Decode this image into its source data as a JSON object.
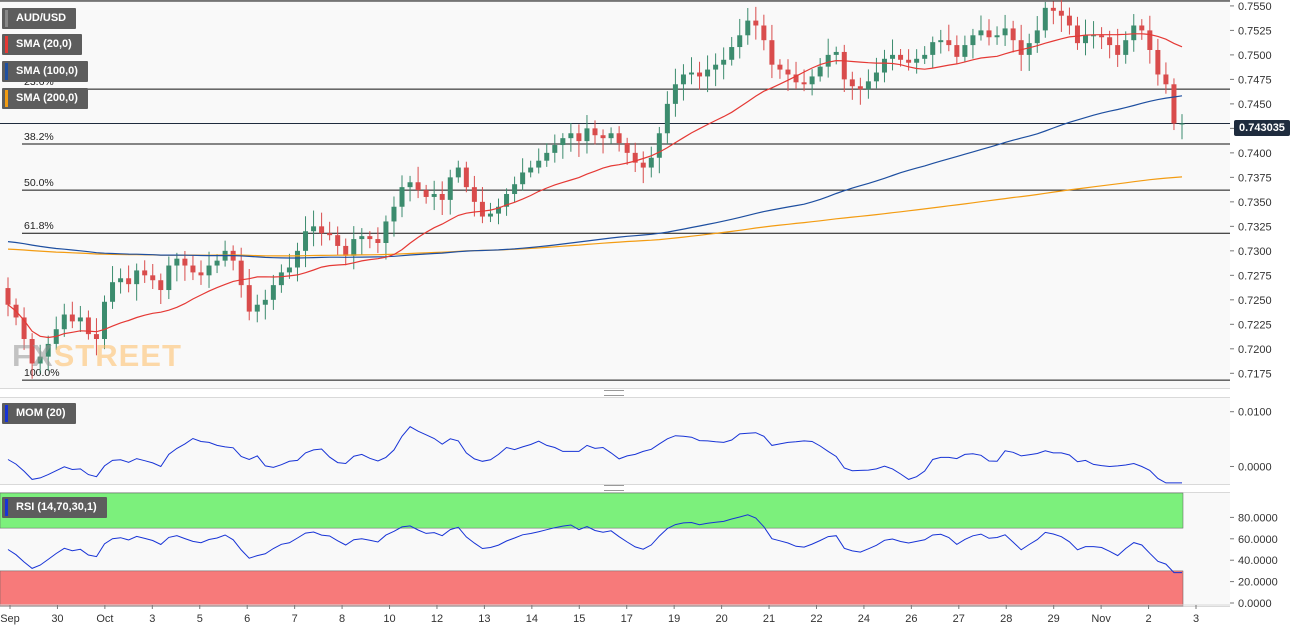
{
  "instrument": "AUD/USD",
  "current_price": "0.743035",
  "watermark": {
    "prefix": "FX",
    "suffix": "STREET"
  },
  "indicators": {
    "sma20": {
      "label": "SMA (20,0)",
      "color": "#e53935"
    },
    "sma100": {
      "label": "SMA (100,0)",
      "color": "#1e4fa0"
    },
    "sma200": {
      "label": "SMA (200,0)",
      "color": "#f39c12"
    },
    "mom": {
      "label": "MOM (20)",
      "color": "#1733d6"
    },
    "rsi": {
      "label": "RSI (14,70,30,1)",
      "color": "#1733d6"
    }
  },
  "colors": {
    "up": "#3c8c6e",
    "down": "#d94c4c",
    "rsi_overbought": "#7cf07c",
    "rsi_oversold": "#f77a7a"
  },
  "chart_data": [
    {
      "type": "candlestick",
      "title": "AUD/USD",
      "ylim": [
        0.716,
        0.7555
      ],
      "y_ticks": [
        "0.7550",
        "0.7525",
        "0.7500",
        "0.7475",
        "0.7450",
        "0.7425",
        "0.7400",
        "0.7375",
        "0.7350",
        "0.7325",
        "0.7300",
        "0.7275",
        "0.7250",
        "0.7225",
        "0.7200",
        "0.7175"
      ],
      "x_tick_labels": [
        "Sep",
        "30",
        "Oct",
        "3",
        "5",
        "6",
        "7",
        "8",
        "10",
        "12",
        "13",
        "14",
        "15",
        "17",
        "19",
        "20",
        "21",
        "22",
        "24",
        "26",
        "27",
        "28",
        "29",
        "Nov",
        "2",
        "3"
      ],
      "fibonacci": [
        {
          "label": "23.6%",
          "value": 0.7465
        },
        {
          "label": "38.2%",
          "value": 0.7409
        },
        {
          "label": "50.0%",
          "value": 0.7362
        },
        {
          "label": "61.8%",
          "value": 0.7318
        },
        {
          "label": "100.0%",
          "value": 0.7168
        }
      ],
      "fib_top_value": 0.7555,
      "current_price_value": 0.743,
      "candle_closes": [
        0.7245,
        0.7232,
        0.721,
        0.7185,
        0.7192,
        0.7205,
        0.722,
        0.7235,
        0.7228,
        0.7232,
        0.7215,
        0.721,
        0.7248,
        0.7268,
        0.7272,
        0.7266,
        0.728,
        0.7275,
        0.727,
        0.726,
        0.7285,
        0.7292,
        0.7285,
        0.7278,
        0.7275,
        0.7285,
        0.729,
        0.73,
        0.729,
        0.7265,
        0.7238,
        0.7245,
        0.725,
        0.7265,
        0.7278,
        0.7283,
        0.73,
        0.732,
        0.7325,
        0.7318,
        0.7316,
        0.7305,
        0.7295,
        0.7312,
        0.7315,
        0.7312,
        0.7308,
        0.733,
        0.7345,
        0.7365,
        0.737,
        0.7362,
        0.7355,
        0.7358,
        0.7352,
        0.7375,
        0.7385,
        0.7365,
        0.735,
        0.7335,
        0.7338,
        0.7345,
        0.7358,
        0.7368,
        0.738,
        0.7385,
        0.7392,
        0.74,
        0.7408,
        0.7415,
        0.742,
        0.7412,
        0.7425,
        0.7418,
        0.7415,
        0.742,
        0.741,
        0.74,
        0.739,
        0.7385,
        0.7395,
        0.742,
        0.745,
        0.747,
        0.748,
        0.7482,
        0.7478,
        0.7485,
        0.749,
        0.7495,
        0.7508,
        0.752,
        0.7535,
        0.753,
        0.7515,
        0.749,
        0.7485,
        0.748,
        0.7472,
        0.747,
        0.7478,
        0.7488,
        0.75,
        0.7503,
        0.7475,
        0.7468,
        0.7465,
        0.7473,
        0.7482,
        0.7496,
        0.75,
        0.7495,
        0.7492,
        0.7496,
        0.75,
        0.7513,
        0.7515,
        0.751,
        0.7498,
        0.751,
        0.752,
        0.7525,
        0.7518,
        0.752,
        0.7527,
        0.7515,
        0.75,
        0.7512,
        0.7525,
        0.7548,
        0.7545,
        0.754,
        0.753,
        0.7512,
        0.752,
        0.752,
        0.7518,
        0.751,
        0.75,
        0.7515,
        0.753,
        0.7525,
        0.7505,
        0.748,
        0.747,
        0.743,
        0.743
      ]
    },
    {
      "type": "line",
      "title": "MOM (20)",
      "ylim": [
        -0.0032,
        0.0125
      ],
      "y_ticks": [
        "0.0100",
        "0.0000"
      ]
    },
    {
      "type": "line",
      "title": "RSI (14,70,30,1)",
      "ylim": [
        0,
        100
      ],
      "y_ticks": [
        "80.0000",
        "60.0000",
        "40.0000",
        "20.0000",
        "0.0000"
      ],
      "overbought": 70,
      "oversold": 30
    }
  ]
}
